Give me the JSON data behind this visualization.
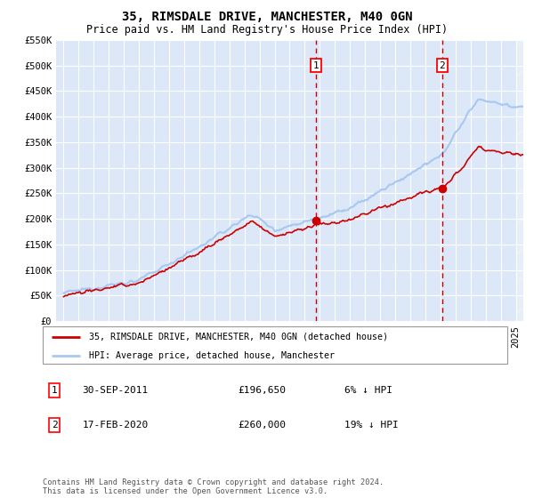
{
  "title": "35, RIMSDALE DRIVE, MANCHESTER, M40 0GN",
  "subtitle": "Price paid vs. HM Land Registry's House Price Index (HPI)",
  "ylim": [
    0,
    550000
  ],
  "yticks": [
    0,
    50000,
    100000,
    150000,
    200000,
    250000,
    300000,
    350000,
    400000,
    450000,
    500000,
    550000
  ],
  "ytick_labels": [
    "£0",
    "£50K",
    "£100K",
    "£150K",
    "£200K",
    "£250K",
    "£300K",
    "£350K",
    "£400K",
    "£450K",
    "£500K",
    "£550K"
  ],
  "xlim_start": 1994.5,
  "xlim_end": 2025.5,
  "plot_bg_color": "#dce8f8",
  "grid_color": "#ffffff",
  "hpi_color": "#a8c8f0",
  "price_color": "#cc0000",
  "event1_x": 2011.75,
  "event2_x": 2020.12,
  "event1_y": 196650,
  "event2_y": 260000,
  "legend_label_price": "35, RIMSDALE DRIVE, MANCHESTER, M40 0GN (detached house)",
  "legend_label_hpi": "HPI: Average price, detached house, Manchester",
  "event1_label": "1",
  "event2_label": "2",
  "event1_date": "30-SEP-2011",
  "event1_price": "£196,650",
  "event1_hpi": "6% ↓ HPI",
  "event2_date": "17-FEB-2020",
  "event2_price": "£260,000",
  "event2_hpi": "19% ↓ HPI",
  "copyright": "Contains HM Land Registry data © Crown copyright and database right 2024.\nThis data is licensed under the Open Government Licence v3.0.",
  "title_fontsize": 10,
  "subtitle_fontsize": 8.5,
  "tick_fontsize": 7.5
}
